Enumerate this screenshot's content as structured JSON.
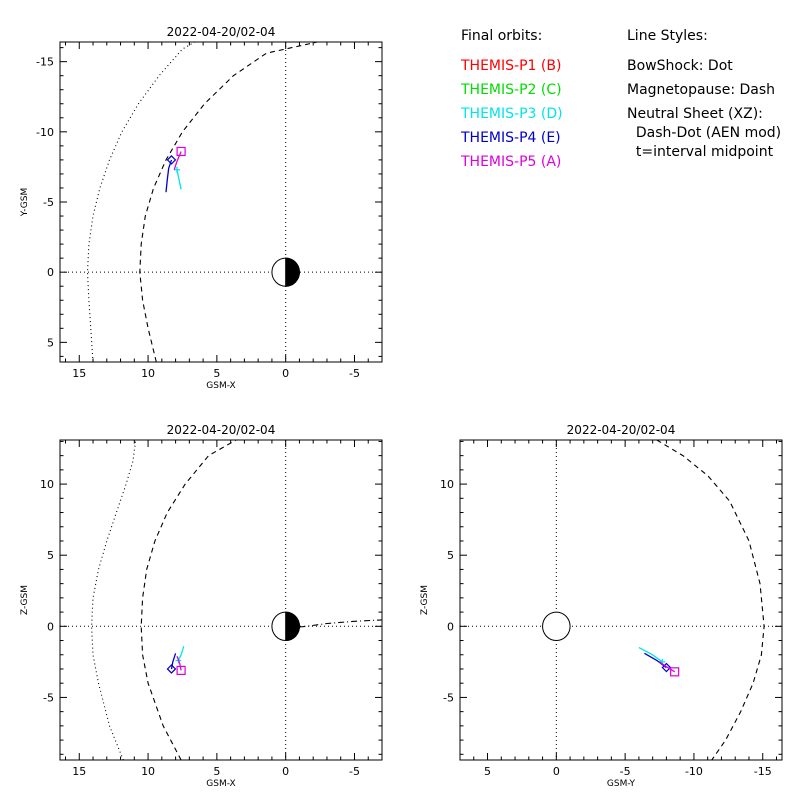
{
  "page": {
    "background": "#ffffff"
  },
  "legend": {
    "orbits_heading": "Final orbits:",
    "orbits": [
      {
        "label": "THEMIS-P1 (B)",
        "color": "#ff0000"
      },
      {
        "label": "THEMIS-P2 (C)",
        "color": "#00dd00"
      },
      {
        "label": "THEMIS-P3 (D)",
        "color": "#00e5e5"
      },
      {
        "label": "THEMIS-P4 (E)",
        "color": "#0000cc"
      },
      {
        "label": "THEMIS-P5 (A)",
        "color": "#dd00dd"
      }
    ],
    "styles_heading": "Line Styles:",
    "styles": [
      "BowShock: Dot",
      "Magnetopause: Dash",
      "Neutral Sheet (XZ):",
      "  Dash-Dot (AEN mod)",
      "  t=interval midpoint"
    ]
  },
  "chart_data": [
    {
      "type": "line",
      "title": "2022-04-20/02-04",
      "xlabel": "GSM-X",
      "ylabel": "Y-GSM",
      "xlim": [
        16.4,
        -7.0
      ],
      "ylim": [
        6.4,
        -16.4
      ],
      "xticks": [
        15,
        10,
        5,
        0,
        -5
      ],
      "yticks": [
        -15,
        -10,
        -5,
        0,
        5
      ],
      "grid": false,
      "zero_lines": true,
      "earth": {
        "radius": 1,
        "night_side": "negative-x"
      },
      "boundaries": [
        {
          "name": "BowShock",
          "style": "dot",
          "points": [
            [
              14.0,
              6.4
            ],
            [
              14.3,
              2.0
            ],
            [
              14.4,
              0
            ],
            [
              14.3,
              -2.0
            ],
            [
              14.0,
              -4.0
            ],
            [
              13.5,
              -6.0
            ],
            [
              12.8,
              -8.0
            ],
            [
              11.9,
              -10.0
            ],
            [
              10.7,
              -12.0
            ],
            [
              9.2,
              -14.0
            ],
            [
              7.5,
              -15.9
            ],
            [
              6.6,
              -16.4
            ]
          ]
        },
        {
          "name": "Magnetopause",
          "style": "dash",
          "points": [
            [
              9.4,
              6.4
            ],
            [
              10.0,
              4.0
            ],
            [
              10.4,
              2.0
            ],
            [
              10.6,
              0
            ],
            [
              10.5,
              -2.0
            ],
            [
              10.2,
              -4.0
            ],
            [
              9.6,
              -6.0
            ],
            [
              8.7,
              -8.0
            ],
            [
              7.5,
              -10.0
            ],
            [
              5.9,
              -12.0
            ],
            [
              3.8,
              -14.0
            ],
            [
              1.4,
              -15.6
            ],
            [
              -2.3,
              -16.4
            ]
          ]
        }
      ],
      "series": [
        {
          "name": "THEMIS-P4 (E)",
          "color": "#0000cc",
          "points": [
            [
              8.7,
              -5.7
            ],
            [
              8.6,
              -6.6
            ],
            [
              8.5,
              -7.4
            ],
            [
              8.3,
              -8.0
            ]
          ],
          "marker": "diamond"
        },
        {
          "name": "THEMIS-P3 (D)",
          "color": "#00e5e5",
          "points": [
            [
              7.6,
              -5.9
            ],
            [
              7.75,
              -6.6
            ],
            [
              7.9,
              -7.3
            ]
          ],
          "marker": "plus"
        },
        {
          "name": "THEMIS-P5 (A)",
          "color": "#dd00dd",
          "points": [
            [
              8.1,
              -7.3
            ],
            [
              7.9,
              -7.9
            ],
            [
              7.6,
              -8.6
            ]
          ],
          "marker": "square"
        }
      ]
    },
    {
      "type": "line",
      "title": "2022-04-20/02-04",
      "xlabel": "GSM-X",
      "ylabel": "Z-GSM",
      "xlim": [
        16.4,
        -7.0
      ],
      "ylim": [
        -9.4,
        13.1
      ],
      "xticks": [
        15,
        10,
        5,
        0,
        -5
      ],
      "yticks": [
        -5,
        0,
        5,
        10
      ],
      "grid": false,
      "zero_lines": true,
      "earth": {
        "radius": 1,
        "night_side": "negative-x"
      },
      "boundaries": [
        {
          "name": "BowShock",
          "style": "dot",
          "points": [
            [
              11.8,
              -9.4
            ],
            [
              12.8,
              -7.0
            ],
            [
              13.6,
              -4.0
            ],
            [
              14.0,
              -2.0
            ],
            [
              14.1,
              0
            ],
            [
              14.0,
              2.0
            ],
            [
              13.6,
              4.0
            ],
            [
              13.0,
              6.0
            ],
            [
              12.3,
              8.0
            ],
            [
              11.6,
              10.0
            ],
            [
              11.1,
              11.6
            ],
            [
              10.9,
              13.1
            ]
          ]
        },
        {
          "name": "Magnetopause",
          "style": "dash",
          "points": [
            [
              7.6,
              -9.4
            ],
            [
              8.9,
              -7.0
            ],
            [
              10.0,
              -4.0
            ],
            [
              10.4,
              -2.0
            ],
            [
              10.5,
              0
            ],
            [
              10.4,
              2.0
            ],
            [
              10.1,
              4.0
            ],
            [
              9.5,
              6.0
            ],
            [
              8.6,
              8.0
            ],
            [
              7.3,
              10.0
            ],
            [
              5.6,
              12.0
            ],
            [
              3.6,
              13.1
            ]
          ]
        },
        {
          "name": "Neutral Sheet",
          "style": "dashdot",
          "points": [
            [
              -1.0,
              -0.05
            ],
            [
              -1.5,
              0.0
            ],
            [
              -3.0,
              0.2
            ],
            [
              -5.0,
              0.35
            ],
            [
              -7.0,
              0.45
            ]
          ]
        }
      ],
      "series": [
        {
          "name": "THEMIS-P4 (E)",
          "color": "#0000cc",
          "points": [
            [
              8.0,
              -1.9
            ],
            [
              8.2,
              -2.5
            ],
            [
              8.3,
              -3.0
            ]
          ],
          "marker": "diamond"
        },
        {
          "name": "THEMIS-P3 (D)",
          "color": "#00e5e5",
          "points": [
            [
              7.4,
              -1.4
            ],
            [
              7.6,
              -2.0
            ],
            [
              7.8,
              -2.4
            ]
          ],
          "marker": "plus"
        },
        {
          "name": "THEMIS-P5 (A)",
          "color": "#dd00dd",
          "points": [
            [
              7.9,
              -2.1
            ],
            [
              7.7,
              -2.6
            ],
            [
              7.6,
              -3.1
            ]
          ],
          "marker": "square"
        }
      ]
    },
    {
      "type": "line",
      "title": "2022-04-20/02-04",
      "xlabel": "GSM-Y",
      "ylabel": "Z-GSM",
      "xlim": [
        7.0,
        -16.4
      ],
      "ylim": [
        -9.4,
        13.1
      ],
      "xticks": [
        5,
        0,
        -5,
        -10,
        -15
      ],
      "yticks": [
        -5,
        0,
        5,
        10
      ],
      "grid": false,
      "zero_lines": true,
      "earth": {
        "radius": 1,
        "night_side": "none"
      },
      "boundaries": [
        {
          "name": "Magnetopause",
          "style": "dash",
          "points": [
            [
              -7.3,
              13.1
            ],
            [
              -9.2,
              12.0
            ],
            [
              -11.0,
              10.6
            ],
            [
              -12.6,
              8.8
            ],
            [
              -14.0,
              6.0
            ],
            [
              -14.8,
              3.0
            ],
            [
              -15.1,
              0
            ],
            [
              -14.9,
              -2.0
            ],
            [
              -14.3,
              -4.0
            ],
            [
              -13.4,
              -6.0
            ],
            [
              -12.3,
              -8.0
            ],
            [
              -11.3,
              -9.4
            ]
          ]
        }
      ],
      "series": [
        {
          "name": "THEMIS-P3 (D)",
          "color": "#00e5e5",
          "points": [
            [
              -6.0,
              -1.5
            ],
            [
              -7.0,
              -2.0
            ],
            [
              -7.7,
              -2.5
            ]
          ],
          "marker": "plus"
        },
        {
          "name": "THEMIS-P4 (E)",
          "color": "#0000cc",
          "points": [
            [
              -6.4,
              -1.9
            ],
            [
              -7.3,
              -2.4
            ],
            [
              -8.0,
              -2.9
            ]
          ],
          "marker": "diamond"
        },
        {
          "name": "THEMIS-P5 (A)",
          "color": "#dd00dd",
          "points": [
            [
              -7.5,
              -2.5
            ],
            [
              -8.1,
              -2.9
            ],
            [
              -8.6,
              -3.2
            ]
          ],
          "marker": "square"
        }
      ]
    }
  ]
}
